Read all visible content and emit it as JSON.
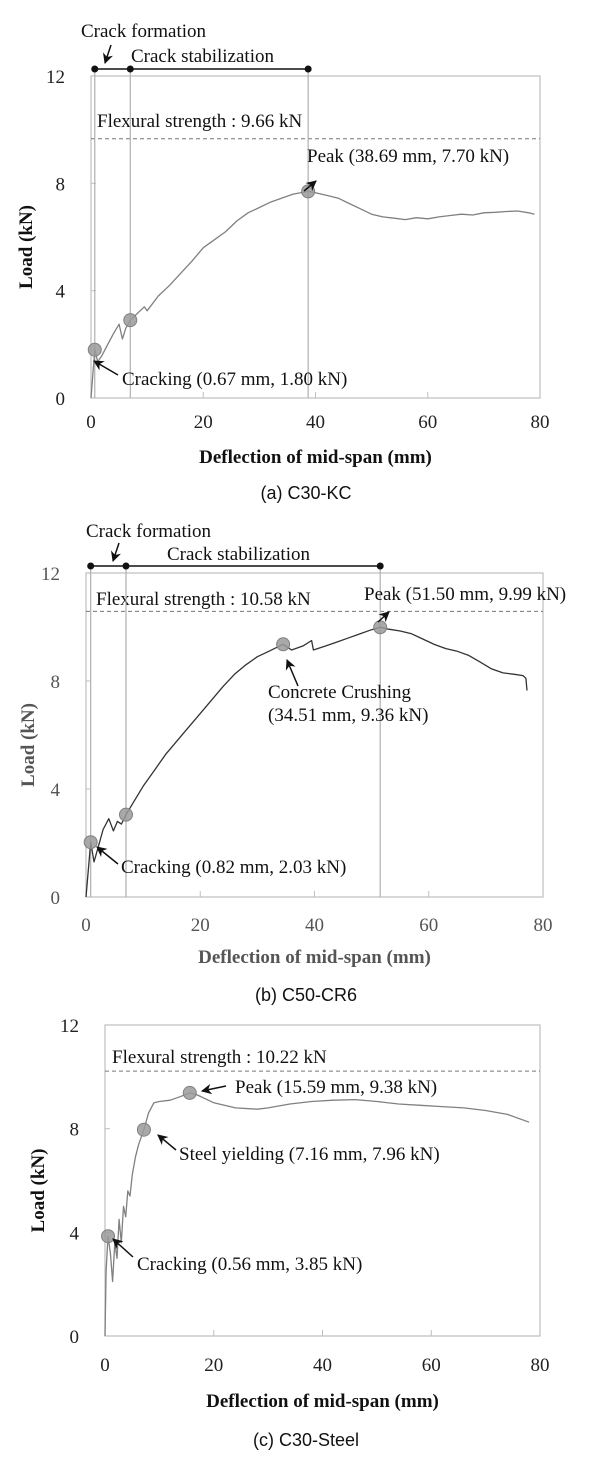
{
  "chart_data": [
    {
      "type": "line",
      "panel": "a",
      "caption": "(a)  C30-KC",
      "xlabel": "Deflection of mid-span (mm)",
      "ylabel": "Load (kN)",
      "xlim": [
        0,
        80
      ],
      "ylim": [
        0,
        12
      ],
      "xticks": [
        0,
        20,
        40,
        60,
        80
      ],
      "yticks": [
        0,
        4,
        8,
        12
      ],
      "grid": false,
      "line_color": "#808080",
      "flexural_strength": {
        "value": 9.66,
        "label": "Flexural strength : 9.66 kN"
      },
      "stages": [
        {
          "name": "Crack formation",
          "from": 0.67,
          "to": 7.0
        },
        {
          "name": "Crack stabilization",
          "from": 7.0,
          "to": 38.69
        }
      ],
      "markers": [
        {
          "name": "Cracking",
          "x": 0.67,
          "y": 1.8,
          "label": "Cracking (0.67 mm, 1.80 kN)"
        },
        {
          "name": "Stage point",
          "x": 7.0,
          "y": 2.9,
          "label": ""
        },
        {
          "name": "Peak",
          "x": 38.69,
          "y": 7.7,
          "label": "Peak (38.69 mm, 7.70 kN)"
        }
      ],
      "series": [
        {
          "name": "C30-KC",
          "x": [
            0,
            0.67,
            1.2,
            2.0,
            3.0,
            4.0,
            5.0,
            5.6,
            6.2,
            7.0,
            8.0,
            9.5,
            10.0,
            12,
            14,
            16,
            18,
            20,
            22,
            24,
            26,
            28,
            30,
            32,
            34,
            36,
            38.69,
            40,
            42,
            44,
            46,
            48,
            50,
            52,
            54,
            56,
            58,
            60,
            62,
            64,
            66,
            68,
            70,
            72,
            74,
            76,
            78,
            79
          ],
          "y": [
            0,
            1.8,
            1.35,
            1.6,
            2.0,
            2.4,
            2.75,
            2.2,
            2.6,
            2.9,
            3.1,
            3.4,
            3.25,
            3.8,
            4.2,
            4.65,
            5.1,
            5.6,
            5.9,
            6.2,
            6.6,
            6.9,
            7.1,
            7.3,
            7.45,
            7.6,
            7.7,
            7.65,
            7.55,
            7.45,
            7.25,
            7.05,
            6.85,
            6.75,
            6.7,
            6.65,
            6.72,
            6.68,
            6.75,
            6.8,
            6.85,
            6.82,
            6.9,
            6.92,
            6.95,
            6.97,
            6.9,
            6.85
          ]
        }
      ]
    },
    {
      "type": "line",
      "panel": "b",
      "caption": "(b)  C50-CR6",
      "xlabel": "Deflection of mid-span (mm)",
      "ylabel": "Load (kN)",
      "xlim": [
        0,
        80
      ],
      "ylim": [
        0,
        12
      ],
      "xticks": [
        0,
        20,
        40,
        60,
        80
      ],
      "yticks": [
        0,
        4,
        8,
        12
      ],
      "grid": false,
      "line_color": "#333333",
      "flexural_strength": {
        "value": 10.58,
        "label": "Flexural strength : 10.58 kN"
      },
      "stages": [
        {
          "name": "Crack formation",
          "from": 0.82,
          "to": 7.0
        },
        {
          "name": "Crack stabilization",
          "from": 7.0,
          "to": 51.5
        }
      ],
      "markers": [
        {
          "name": "Cracking",
          "x": 0.82,
          "y": 2.03,
          "label": "Cracking (0.82 mm, 2.03 kN)"
        },
        {
          "name": "Stage point",
          "x": 7.0,
          "y": 3.05,
          "label": ""
        },
        {
          "name": "Concrete Crushing",
          "x": 34.51,
          "y": 9.36,
          "label": "Concrete Crushing",
          "label2": "(34.51 mm, 9.36 kN)"
        },
        {
          "name": "Peak",
          "x": 51.5,
          "y": 9.99,
          "label": "Peak (51.50 mm, 9.99 kN)"
        }
      ],
      "series": [
        {
          "name": "C50-CR6",
          "x": [
            0,
            0.82,
            1.4,
            2.2,
            3.0,
            4.0,
            4.8,
            5.5,
            6.2,
            7.0,
            8.0,
            10,
            12,
            14,
            16,
            18,
            20,
            22,
            24,
            26,
            28,
            30,
            32,
            34.51,
            36,
            38,
            39.5,
            39.8,
            42,
            44,
            46,
            48,
            50,
            51.5,
            53,
            55,
            57,
            59,
            61,
            63,
            65,
            67,
            69,
            71,
            73,
            75,
            76.5,
            77,
            77.2
          ],
          "y": [
            0,
            2.03,
            1.3,
            1.9,
            2.5,
            2.9,
            2.45,
            2.8,
            2.7,
            3.05,
            3.4,
            4.1,
            4.7,
            5.3,
            5.8,
            6.3,
            6.8,
            7.3,
            7.8,
            8.25,
            8.6,
            8.9,
            9.1,
            9.36,
            9.15,
            9.3,
            9.5,
            9.15,
            9.3,
            9.45,
            9.6,
            9.75,
            9.9,
            9.99,
            9.92,
            9.85,
            9.75,
            9.55,
            9.35,
            9.2,
            9.1,
            8.95,
            8.7,
            8.45,
            8.3,
            8.25,
            8.2,
            8.1,
            7.65
          ]
        }
      ]
    },
    {
      "type": "line",
      "panel": "c",
      "caption": "(c)  C30-Steel",
      "xlabel": "Deflection of mid-span (mm)",
      "ylabel": "Load (kN)",
      "xlim": [
        0,
        80
      ],
      "ylim": [
        0,
        12
      ],
      "xticks": [
        0,
        20,
        40,
        60,
        80
      ],
      "yticks": [
        0,
        4,
        8,
        12
      ],
      "grid": false,
      "line_color": "#808080",
      "flexural_strength": {
        "value": 10.22,
        "label": "Flexural strength : 10.22 kN"
      },
      "stages": [],
      "markers": [
        {
          "name": "Cracking",
          "x": 0.56,
          "y": 3.85,
          "label": "Cracking (0.56 mm, 3.85 kN)"
        },
        {
          "name": "Steel yielding",
          "x": 7.16,
          "y": 7.96,
          "label": "Steel yielding (7.16 mm, 7.96 kN)"
        },
        {
          "name": "Peak",
          "x": 15.59,
          "y": 9.38,
          "label": "Peak (15.59 mm, 9.38 kN)"
        }
      ],
      "series": [
        {
          "name": "C30-Steel",
          "x": [
            0,
            0.2,
            0.56,
            1.0,
            1.4,
            1.8,
            2.2,
            2.6,
            3.0,
            3.4,
            3.8,
            4.2,
            4.6,
            5.0,
            5.6,
            6.2,
            7.16,
            8.0,
            9.0,
            10.0,
            12,
            14,
            15.59,
            17,
            20,
            24,
            28,
            30,
            34,
            38,
            42,
            46,
            50,
            54,
            58,
            62,
            66,
            70,
            74,
            78
          ],
          "y": [
            0,
            2.5,
            3.85,
            3.2,
            2.1,
            3.6,
            3.0,
            4.5,
            3.6,
            5.0,
            4.6,
            5.6,
            5.4,
            6.2,
            6.9,
            7.4,
            7.96,
            8.6,
            9.0,
            9.05,
            9.1,
            9.25,
            9.38,
            9.3,
            9.0,
            8.8,
            8.75,
            8.8,
            8.95,
            9.05,
            9.1,
            9.12,
            9.05,
            8.95,
            8.9,
            8.85,
            8.8,
            8.7,
            8.55,
            8.25
          ]
        }
      ]
    }
  ]
}
